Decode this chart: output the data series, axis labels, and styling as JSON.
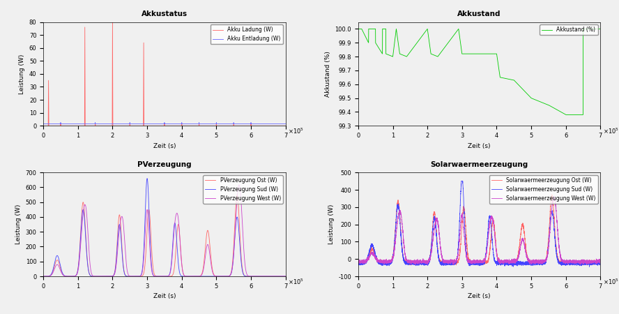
{
  "fig_width": 8.88,
  "fig_height": 4.5,
  "background_color": "#f0f0f0",
  "plot1_title": "Akkustatus",
  "plot1_xlabel": "Zeit (s)",
  "plot1_ylabel": "Leistung (W)",
  "plot1_xlim": [
    0,
    700000.0
  ],
  "plot1_ylim": [
    0,
    80
  ],
  "plot1_yticks": [
    0,
    10,
    20,
    30,
    40,
    50,
    60,
    70,
    80
  ],
  "plot1_xticks": [
    0,
    100000.0,
    200000.0,
    300000.0,
    400000.0,
    500000.0,
    600000.0,
    700000.0
  ],
  "plot1_legend1": "Akku Ladung (W)",
  "plot1_legend2": "Akku Entladung (W)",
  "plot1_color1": "#ff6666",
  "plot1_color2": "#6666ff",
  "plot2_title": "Akkustand",
  "plot2_xlabel": "Zeit (s)",
  "plot2_ylabel": "Akkustand (%)",
  "plot2_xlim": [
    0,
    700000.0
  ],
  "plot2_ylim": [
    99.3,
    100.05
  ],
  "plot2_yticks": [
    99.3,
    99.4,
    99.5,
    99.6,
    99.7,
    99.8,
    99.9,
    100.0
  ],
  "plot2_xticks": [
    0,
    100000.0,
    200000.0,
    300000.0,
    400000.0,
    500000.0,
    600000.0,
    700000.0
  ],
  "plot2_legend1": "Akkustand (%)",
  "plot2_color1": "#00cc00",
  "plot3_title": "PVerzeugung",
  "plot3_xlabel": "Zeit (s)",
  "plot3_ylabel": "Leistung (W)",
  "plot3_xlim": [
    0,
    700000.0
  ],
  "plot3_ylim": [
    0,
    700
  ],
  "plot3_yticks": [
    0,
    100,
    200,
    300,
    400,
    500,
    600,
    700
  ],
  "plot3_xticks": [
    0,
    100000.0,
    200000.0,
    300000.0,
    400000.0,
    500000.0,
    600000.0,
    700000.0
  ],
  "plot3_legend1": "PVerzeugung Ost (W)",
  "plot3_legend2": "PVerzeugung Sud (W)",
  "plot3_legend3": "PVerzeugung West (W)",
  "plot3_color1": "#ff6666",
  "plot3_color2": "#4444ff",
  "plot3_color3": "#cc44cc",
  "plot4_title": "Solarwaermeerzeugung",
  "plot4_xlabel": "Zeit (s)",
  "plot4_ylabel": "Leistung (W)",
  "plot4_xlim": [
    0,
    700000.0
  ],
  "plot4_ylim": [
    -100,
    500
  ],
  "plot4_yticks": [
    -100,
    0,
    100,
    200,
    300,
    400,
    500
  ],
  "plot4_xticks": [
    0,
    100000.0,
    200000.0,
    300000.0,
    400000.0,
    500000.0,
    600000.0,
    700000.0
  ],
  "plot4_legend1": "Solarwaermeerzeugung Ost (W)",
  "plot4_legend2": "Solarwaermeerzeugung Sud (W)",
  "plot4_legend3": "Solarwaermeerzeugung West (W)",
  "plot4_color1": "#ff6666",
  "plot4_color2": "#4444ff",
  "plot4_color3": "#cc44cc"
}
